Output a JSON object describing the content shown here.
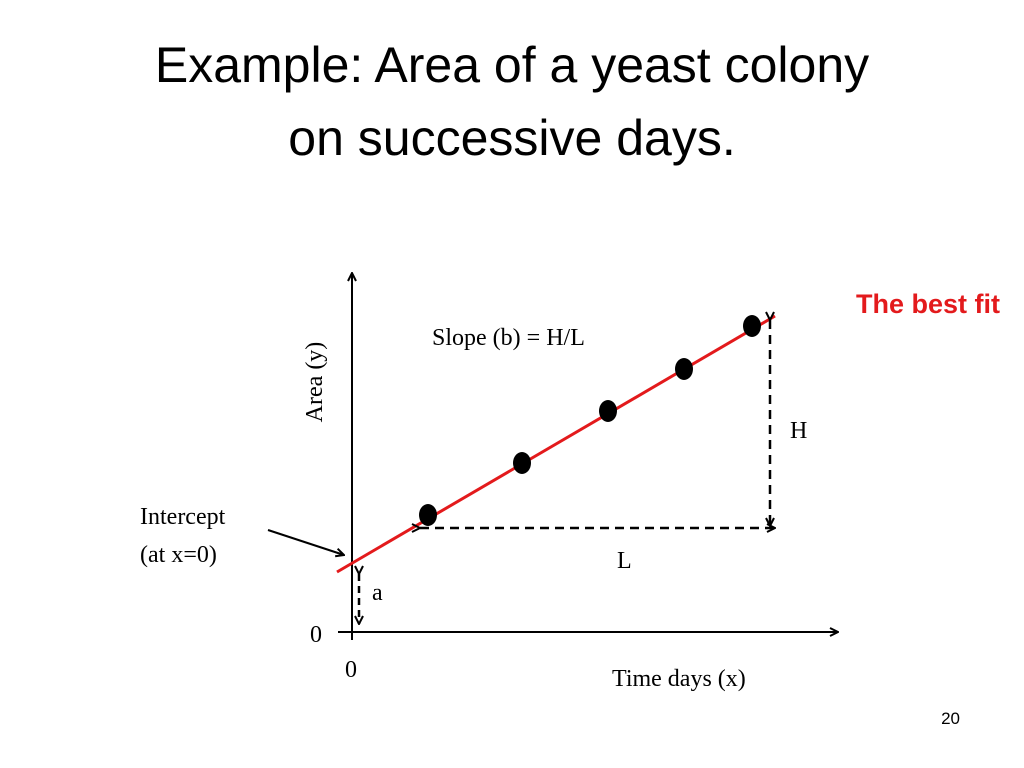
{
  "title": {
    "line1": "Example: Area of a yeast colony",
    "line2": "on successive days."
  },
  "labels": {
    "best_fit": "The best fit",
    "slope": "Slope (b) = H/L",
    "y_axis": "Area (y)",
    "h": "H",
    "l": "L",
    "intercept_1": "Intercept",
    "intercept_2": "(at x=0)",
    "a": "a",
    "y_zero": "0",
    "x_zero": "0",
    "x_axis": "Time days (x)"
  },
  "page_number": "20"
}
